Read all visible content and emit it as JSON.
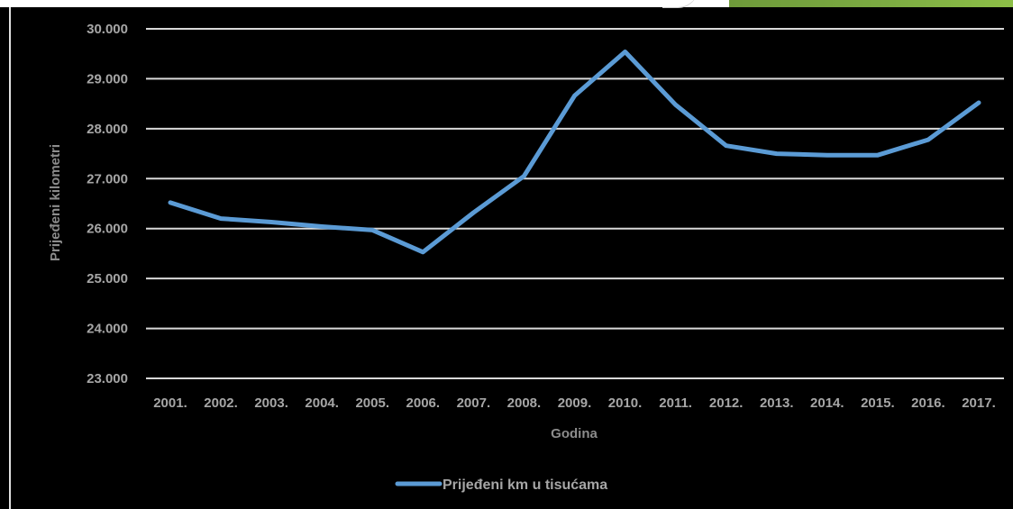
{
  "chart_data": {
    "type": "line",
    "title": "",
    "xlabel": "Godina",
    "ylabel": "Prijeđeni kilometri",
    "categories": [
      "2001.",
      "2002.",
      "2003.",
      "2004.",
      "2005.",
      "2006.",
      "2007.",
      "2008.",
      "2009.",
      "2010.",
      "2011.",
      "2012.",
      "2013.",
      "2014.",
      "2015.",
      "2016.",
      "2017."
    ],
    "series": [
      {
        "name": "Prijeđeni km u tisućama",
        "color": "#5b9bd5",
        "values": [
          26520,
          26200,
          26130,
          26040,
          25970,
          25530,
          26320,
          27050,
          28660,
          29540,
          28480,
          27660,
          27500,
          27470,
          27470,
          27780,
          28520
        ]
      }
    ],
    "ylim": [
      23000,
      30000
    ],
    "yticks": [
      "23.000",
      "24.000",
      "25.000",
      "26.000",
      "27.000",
      "28.000",
      "29.000",
      "30.000"
    ],
    "grid": true,
    "legend": "bottom"
  }
}
